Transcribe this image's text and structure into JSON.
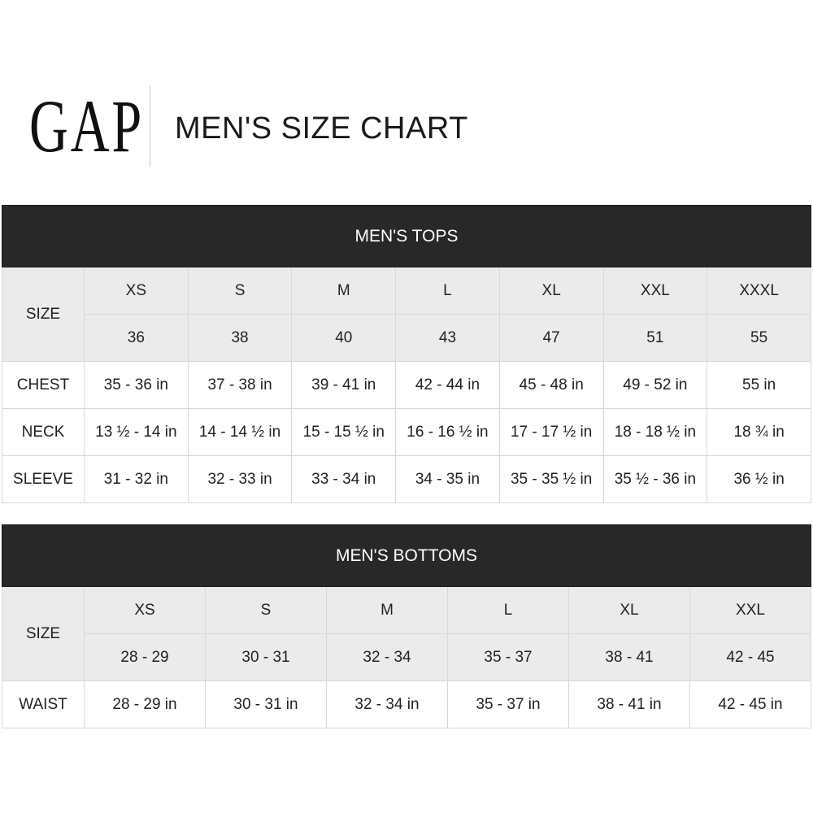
{
  "brand": {
    "logo_text": "GAP"
  },
  "title": "MEN'S SIZE CHART",
  "tops": {
    "heading": "MEN'S TOPS",
    "size_label": "SIZE",
    "sizes": [
      "XS",
      "S",
      "M",
      "L",
      "XL",
      "XXL",
      "XXXL"
    ],
    "size_numbers": [
      "36",
      "38",
      "40",
      "43",
      "47",
      "51",
      "55"
    ],
    "rows": [
      {
        "label": "CHEST",
        "values": [
          "35 - 36 in",
          "37 - 38 in",
          "39 - 41 in",
          "42 - 44 in",
          "45 - 48 in",
          "49 - 52 in",
          "55 in"
        ]
      },
      {
        "label": "NECK",
        "values": [
          "13 ½ - 14 in",
          "14 - 14 ½ in",
          "15 - 15 ½ in",
          "16 - 16 ½ in",
          "17 - 17 ½ in",
          "18 - 18 ½ in",
          "18 ¾ in"
        ]
      },
      {
        "label": "SLEEVE",
        "values": [
          "31 - 32 in",
          "32 - 33 in",
          "33 - 34 in",
          "34 - 35 in",
          "35 - 35 ½ in",
          "35 ½ - 36 in",
          "36 ½ in"
        ]
      }
    ]
  },
  "bottoms": {
    "heading": "MEN'S BOTTOMS",
    "size_label": "SIZE",
    "sizes": [
      "XS",
      "S",
      "M",
      "L",
      "XL",
      "XXL"
    ],
    "size_numbers": [
      "28 - 29",
      "30 - 31",
      "32 - 34",
      "35 - 37",
      "38 - 41",
      "42 - 45"
    ],
    "rows": [
      {
        "label": "WAIST",
        "values": [
          "28 - 29 in",
          "30 - 31 in",
          "32 - 34 in",
          "35 - 37 in",
          "38 - 41 in",
          "42 - 45 in"
        ]
      }
    ]
  }
}
